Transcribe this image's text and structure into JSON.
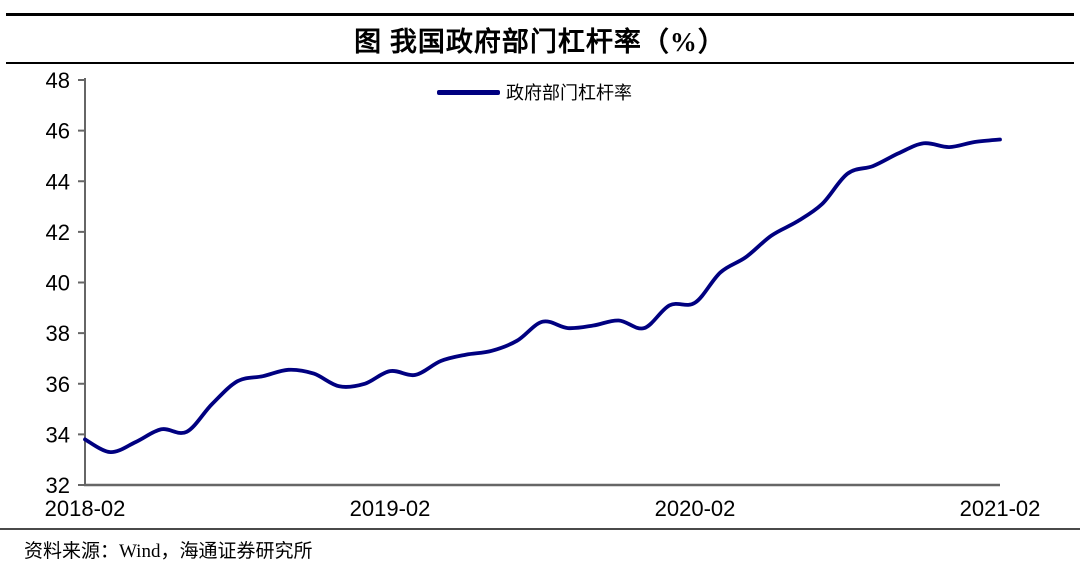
{
  "title": "图 我国政府部门杠杆率（%）",
  "legend": {
    "label": "政府部门杠杆率"
  },
  "source": "资料来源：Wind，海通证券研究所",
  "colors": {
    "line": "#000080",
    "axis": "#666666",
    "text": "#000000"
  },
  "chart_data": {
    "type": "line",
    "title": "图 我国政府部门杠杆率（%）",
    "unit": "%",
    "xlabel": "",
    "ylabel": "",
    "grid": false,
    "legend_position": "top-center",
    "ylim": [
      32,
      48
    ],
    "yticks": [
      32,
      34,
      36,
      38,
      40,
      42,
      44,
      46,
      48
    ],
    "x_tick_labels": [
      "2018-02",
      "2019-02",
      "2020-02",
      "2021-02"
    ],
    "x_tick_indices": [
      0,
      12,
      24,
      36
    ],
    "x": [
      "2018-02",
      "2018-03",
      "2018-04",
      "2018-05",
      "2018-06",
      "2018-07",
      "2018-08",
      "2018-09",
      "2018-10",
      "2018-11",
      "2018-12",
      "2019-01",
      "2019-02",
      "2019-03",
      "2019-04",
      "2019-05",
      "2019-06",
      "2019-07",
      "2019-08",
      "2019-09",
      "2019-10",
      "2019-11",
      "2019-12",
      "2020-01",
      "2020-02",
      "2020-03",
      "2020-04",
      "2020-05",
      "2020-06",
      "2020-07",
      "2020-08",
      "2020-09",
      "2020-10",
      "2020-11",
      "2020-12",
      "2021-01",
      "2021-02"
    ],
    "series": [
      {
        "name": "政府部门杠杆率",
        "values": [
          33.8,
          33.3,
          33.7,
          34.2,
          34.1,
          35.2,
          36.1,
          36.3,
          36.55,
          36.4,
          35.9,
          36.0,
          36.5,
          36.35,
          36.9,
          37.15,
          37.3,
          37.7,
          38.45,
          38.2,
          38.3,
          38.5,
          38.2,
          39.1,
          39.2,
          40.4,
          41.0,
          41.85,
          42.4,
          43.1,
          44.3,
          44.6,
          45.1,
          45.5,
          45.35,
          45.55,
          45.65
        ]
      }
    ]
  }
}
